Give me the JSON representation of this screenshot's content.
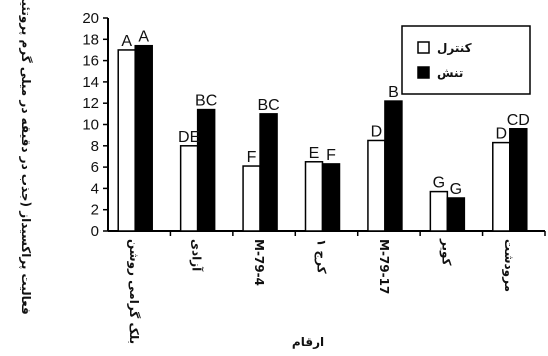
{
  "chart_data": {
    "type": "bar",
    "categories": [
      "بلک گرامی روشن",
      "آزادی",
      "M-79-4",
      "کرج ۱",
      "M-79-17",
      "کویر",
      "مرودشت"
    ],
    "series": [
      {
        "name": "کنترل",
        "color": "#ffffff",
        "values": [
          17.0,
          8.0,
          6.1,
          6.5,
          8.5,
          3.7,
          8.3
        ],
        "labels": [
          "A",
          "DE",
          "F",
          "E",
          "D",
          "G",
          "D"
        ]
      },
      {
        "name": "تنش",
        "color": "#000000",
        "values": [
          17.4,
          11.4,
          11.0,
          6.3,
          12.2,
          3.1,
          9.6
        ],
        "labels": [
          "A",
          "BC",
          "BC",
          "F",
          "B",
          "G",
          "CD"
        ]
      }
    ],
    "ylabel": "فعالیت پراکسیداز (جذب در دقیقه در میلی گرم پروتئین)",
    "xlabel": "ارقام",
    "ylim": [
      0,
      20
    ],
    "yticks": [
      0,
      2,
      4,
      6,
      8,
      10,
      12,
      14,
      16,
      18,
      20
    ],
    "legend": "top-right",
    "grid": false
  }
}
